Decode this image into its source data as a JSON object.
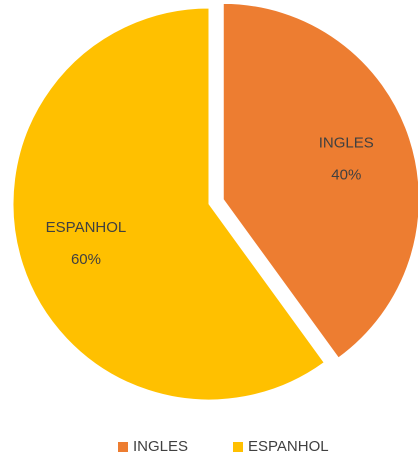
{
  "chart_data": {
    "type": "pie",
    "categories": [
      "INGLES",
      "ESPANHOL"
    ],
    "values": [
      40,
      60
    ],
    "value_labels": [
      "40%",
      "60%"
    ],
    "colors": [
      "#ed7d31",
      "#ffc000"
    ],
    "exploded": [
      true,
      false
    ],
    "legend": "bottom"
  }
}
